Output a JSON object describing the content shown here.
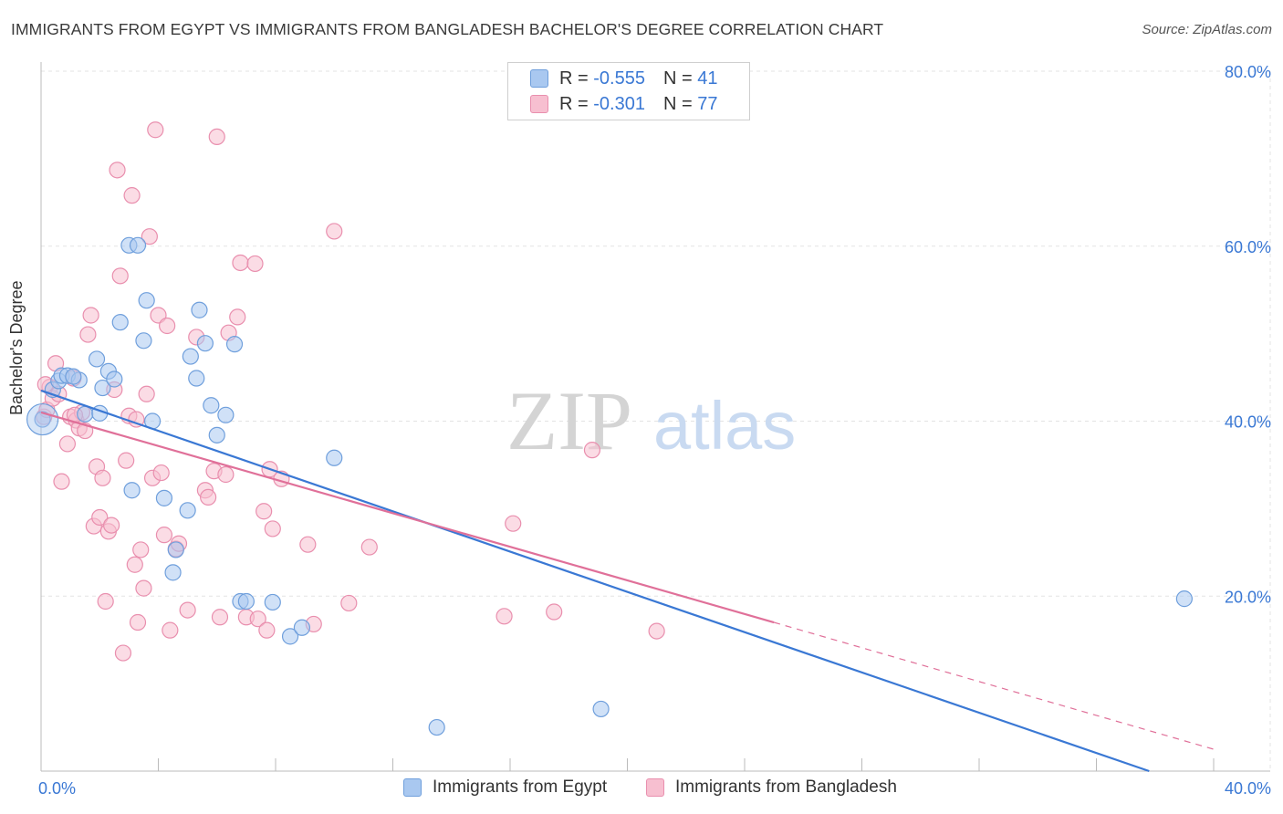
{
  "title": "IMMIGRANTS FROM EGYPT VS IMMIGRANTS FROM BANGLADESH BACHELOR'S DEGREE CORRELATION CHART",
  "source": "Source: ZipAtlas.com",
  "watermark": {
    "zip": "ZIP",
    "atlas": "atlas"
  },
  "legend": {
    "r_label": "R =",
    "n_label": "N =",
    "egypt": {
      "r": "-0.555",
      "n": "41"
    },
    "bangladesh": {
      "r": "-0.301",
      "n": "77"
    }
  },
  "colors": {
    "egypt_fill": "#a9c8f0",
    "egypt_stroke": "#6f9fdc",
    "egypt_line": "#3a78d4",
    "bangladesh_fill": "#f7bfd0",
    "bangladesh_stroke": "#e98fae",
    "bangladesh_line": "#e07099",
    "axis_label": "#3a78d4",
    "grid": "#e3e3e3"
  },
  "chart_data": {
    "type": "scatter",
    "xlabel": "",
    "ylabel": "Bachelor's Degree",
    "xlim": [
      0,
      40
    ],
    "ylim": [
      0,
      80
    ],
    "x_tick_labels": [
      "0.0%",
      "40.0%"
    ],
    "y_ticks": [
      20,
      40,
      60,
      80
    ],
    "y_tick_labels": [
      "20.0%",
      "40.0%",
      "60.0%",
      "80.0%"
    ],
    "grid": true,
    "series": [
      {
        "name": "Immigrants from Egypt",
        "r": -0.555,
        "n": 41,
        "trend": {
          "x0": 0,
          "y0": 43.5,
          "x1": 37.8,
          "y1": 0,
          "dashed_to": null
        },
        "points": [
          [
            0.05,
            40.2
          ],
          [
            0.4,
            43.6
          ],
          [
            0.6,
            44.6
          ],
          [
            0.7,
            45.2
          ],
          [
            0.9,
            45.2
          ],
          [
            1.3,
            44.7
          ],
          [
            1.5,
            40.8
          ],
          [
            1.9,
            47.1
          ],
          [
            2.1,
            43.8
          ],
          [
            2.3,
            45.7
          ],
          [
            2.5,
            44.8
          ],
          [
            2.7,
            51.3
          ],
          [
            3.0,
            60.1
          ],
          [
            3.3,
            60.1
          ],
          [
            3.1,
            32.1
          ],
          [
            3.5,
            49.2
          ],
          [
            3.6,
            53.8
          ],
          [
            3.8,
            40.0
          ],
          [
            4.2,
            31.2
          ],
          [
            4.5,
            22.7
          ],
          [
            4.6,
            25.3
          ],
          [
            5.0,
            29.8
          ],
          [
            5.1,
            47.4
          ],
          [
            5.3,
            44.9
          ],
          [
            5.4,
            52.7
          ],
          [
            5.6,
            48.9
          ],
          [
            5.8,
            41.8
          ],
          [
            6.0,
            38.4
          ],
          [
            6.3,
            40.7
          ],
          [
            6.6,
            48.8
          ],
          [
            6.8,
            19.4
          ],
          [
            7.0,
            19.4
          ],
          [
            7.9,
            19.3
          ],
          [
            8.5,
            15.4
          ],
          [
            8.9,
            16.4
          ],
          [
            10.0,
            35.8
          ],
          [
            13.5,
            5.0
          ],
          [
            19.1,
            7.1
          ],
          [
            39.0,
            19.7
          ],
          [
            1.1,
            45.1
          ],
          [
            2.0,
            40.9
          ]
        ]
      },
      {
        "name": "Immigrants from Bangladesh",
        "r": -0.301,
        "n": 77,
        "trend": {
          "x0": 0,
          "y0": 41.0,
          "x1": 25.0,
          "y1": 17.0,
          "dashed_to": {
            "x": 40.0,
            "y": 2.5
          }
        },
        "points": [
          [
            0.1,
            40.5
          ],
          [
            0.2,
            41.3
          ],
          [
            0.3,
            43.9
          ],
          [
            0.4,
            42.6
          ],
          [
            0.5,
            46.6
          ],
          [
            0.6,
            43.1
          ],
          [
            0.7,
            33.1
          ],
          [
            0.9,
            37.4
          ],
          [
            1.0,
            40.5
          ],
          [
            1.1,
            44.9
          ],
          [
            1.2,
            40.1
          ],
          [
            1.3,
            39.2
          ],
          [
            1.4,
            41.0
          ],
          [
            1.5,
            38.9
          ],
          [
            1.6,
            49.9
          ],
          [
            1.7,
            52.1
          ],
          [
            1.8,
            28.0
          ],
          [
            1.9,
            34.8
          ],
          [
            2.0,
            29.0
          ],
          [
            2.1,
            33.5
          ],
          [
            2.2,
            19.4
          ],
          [
            2.3,
            27.4
          ],
          [
            2.4,
            28.1
          ],
          [
            2.5,
            43.6
          ],
          [
            2.6,
            68.7
          ],
          [
            2.7,
            56.6
          ],
          [
            2.8,
            13.5
          ],
          [
            2.9,
            35.5
          ],
          [
            3.0,
            40.6
          ],
          [
            3.1,
            65.8
          ],
          [
            3.2,
            23.6
          ],
          [
            3.3,
            17.0
          ],
          [
            3.4,
            25.3
          ],
          [
            3.5,
            20.9
          ],
          [
            3.6,
            43.1
          ],
          [
            3.7,
            61.1
          ],
          [
            3.8,
            33.5
          ],
          [
            3.9,
            73.3
          ],
          [
            4.0,
            52.1
          ],
          [
            4.1,
            34.1
          ],
          [
            4.2,
            27.0
          ],
          [
            4.3,
            50.9
          ],
          [
            4.4,
            16.1
          ],
          [
            4.6,
            25.4
          ],
          [
            4.7,
            26.0
          ],
          [
            5.0,
            18.4
          ],
          [
            5.3,
            49.6
          ],
          [
            5.6,
            32.1
          ],
          [
            5.7,
            31.3
          ],
          [
            5.9,
            34.3
          ],
          [
            6.0,
            72.5
          ],
          [
            6.1,
            17.6
          ],
          [
            6.3,
            33.9
          ],
          [
            6.4,
            50.1
          ],
          [
            6.7,
            51.9
          ],
          [
            6.8,
            58.1
          ],
          [
            7.0,
            17.6
          ],
          [
            7.3,
            58.0
          ],
          [
            7.4,
            17.4
          ],
          [
            7.6,
            29.7
          ],
          [
            7.7,
            16.1
          ],
          [
            7.8,
            34.5
          ],
          [
            7.9,
            27.7
          ],
          [
            8.2,
            33.4
          ],
          [
            9.1,
            25.9
          ],
          [
            9.3,
            16.8
          ],
          [
            10.0,
            61.7
          ],
          [
            10.5,
            19.2
          ],
          [
            11.2,
            25.6
          ],
          [
            15.8,
            17.7
          ],
          [
            16.1,
            28.3
          ],
          [
            17.5,
            18.2
          ],
          [
            18.8,
            36.7
          ],
          [
            21.0,
            16.0
          ],
          [
            0.15,
            44.2
          ],
          [
            1.15,
            40.7
          ],
          [
            3.25,
            40.2
          ]
        ]
      }
    ]
  }
}
